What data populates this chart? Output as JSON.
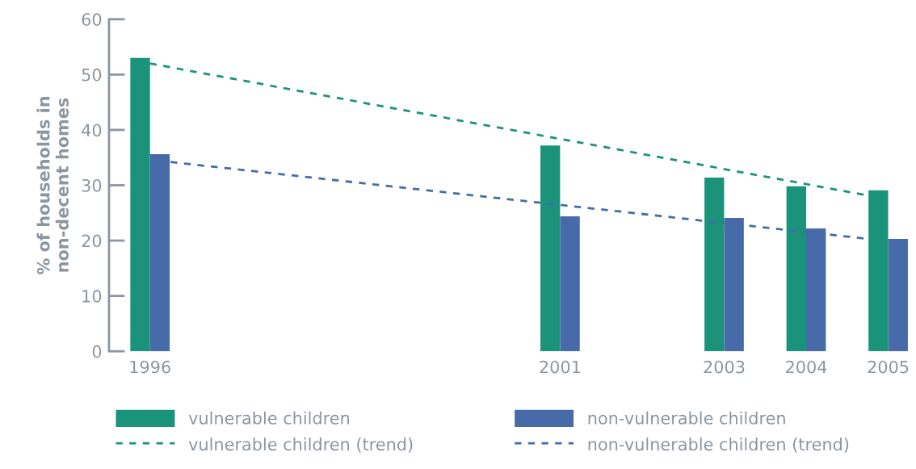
{
  "chart_data": {
    "type": "bar",
    "ylabel": "% of households in\nnon-decent homes",
    "x": [
      1996,
      2001,
      2003,
      2004,
      2005
    ],
    "series": [
      {
        "name": "vulnerable children",
        "color": "#1b937a",
        "values": [
          53.0,
          37.2,
          31.4,
          29.8,
          29.1
        ]
      },
      {
        "name": "non-vulnerable children",
        "color": "#466ba8",
        "values": [
          35.6,
          24.4,
          24.1,
          22.2,
          20.3
        ]
      },
      {
        "name": "vulnerable children (trend)",
        "type": "line",
        "line_style": "dashed",
        "color": "#1b937a",
        "x": [
          1996,
          2004.7
        ],
        "values": [
          52.0,
          28.3
        ]
      },
      {
        "name": "non-vulnerable children (trend)",
        "type": "line",
        "line_style": "dashed",
        "color": "#466ba8",
        "x": [
          1996.25,
          2004.7
        ],
        "values": [
          34.2,
          20.4
        ]
      }
    ],
    "xlim": [
      1995.5,
      2005.25
    ],
    "xticks": [
      1996,
      2001,
      2003,
      2004,
      2005
    ],
    "ylim": [
      0,
      60
    ],
    "yticks": [
      0,
      10,
      20,
      30,
      40,
      50,
      60
    ],
    "grid": false,
    "legend": "bottom",
    "marker": "none"
  }
}
